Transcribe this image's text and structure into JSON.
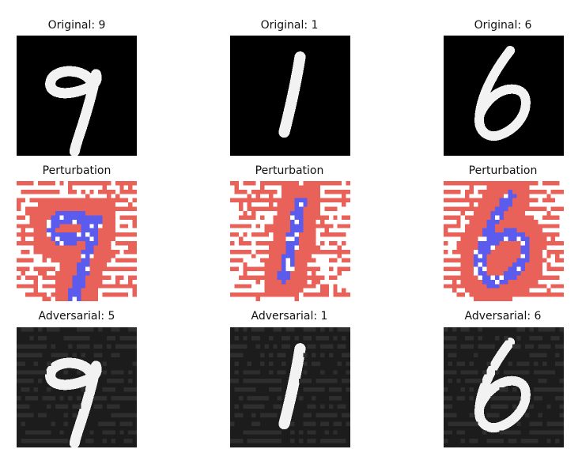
{
  "figure": {
    "rows": [
      {
        "kind": "original",
        "titles": [
          "Original: 9",
          "Original: 1",
          "Original: 6"
        ]
      },
      {
        "kind": "perturbation",
        "titles": [
          "Perturbation",
          "Perturbation",
          "Perturbation"
        ]
      },
      {
        "kind": "adversarial",
        "titles": [
          "Adversarial: 5",
          "Adversarial: 1",
          "Adversarial: 6"
        ]
      }
    ],
    "digits": [
      "9",
      "1",
      "6"
    ],
    "colors": {
      "background_original": "#000000",
      "background_adversarial": "#1c1c1c",
      "stroke": "#f2f2f2",
      "perturbation_positive": "#e8625a",
      "perturbation_negative": "#5b5bee",
      "noise_dark": "#2e2e2e"
    }
  }
}
